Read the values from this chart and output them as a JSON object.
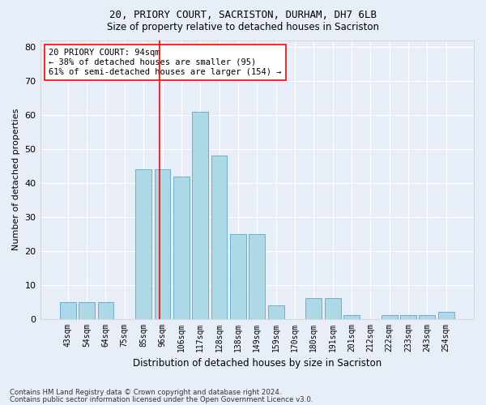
{
  "title1": "20, PRIORY COURT, SACRISTON, DURHAM, DH7 6LB",
  "title2": "Size of property relative to detached houses in Sacriston",
  "xlabel": "Distribution of detached houses by size in Sacriston",
  "ylabel": "Number of detached properties",
  "categories": [
    "43sqm",
    "54sqm",
    "64sqm",
    "75sqm",
    "85sqm",
    "96sqm",
    "106sqm",
    "117sqm",
    "128sqm",
    "138sqm",
    "149sqm",
    "159sqm",
    "170sqm",
    "180sqm",
    "191sqm",
    "201sqm",
    "212sqm",
    "222sqm",
    "233sqm",
    "243sqm",
    "254sqm"
  ],
  "values": [
    5,
    5,
    5,
    0,
    44,
    44,
    42,
    61,
    48,
    25,
    25,
    4,
    0,
    6,
    6,
    1,
    0,
    1,
    1,
    1,
    2
  ],
  "bar_color": "#add8e6",
  "bar_edgecolor": "#6baed6",
  "bg_color": "#e8eef8",
  "grid_color": "#ffffff",
  "annotation_text": "20 PRIORY COURT: 94sqm\n← 38% of detached houses are smaller (95)\n61% of semi-detached houses are larger (154) →",
  "ylim": [
    0,
    82
  ],
  "yticks": [
    0,
    10,
    20,
    30,
    40,
    50,
    60,
    70,
    80
  ],
  "vline_index": 4.85,
  "footnote1": "Contains HM Land Registry data © Crown copyright and database right 2024.",
  "footnote2": "Contains public sector information licensed under the Open Government Licence v3.0."
}
